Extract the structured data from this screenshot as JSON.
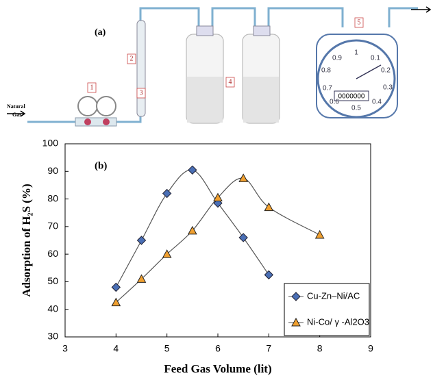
{
  "diagram": {
    "label": "(a)",
    "inlet": [
      "Natural",
      "Gas"
    ],
    "parts": [
      "1",
      "2",
      "3",
      "4",
      "5"
    ],
    "dial": [
      "0.9",
      "1",
      "0.1",
      "0.2",
      "0.8",
      "0.3",
      "0.7",
      "0.6",
      "0.4",
      "0.5"
    ],
    "counter": "0000000"
  },
  "chart_data": {
    "type": "line",
    "annotation": "(b)",
    "x_label": "Feed Gas Volume (lit)",
    "y_label": "Adsorption of H₂S (%)",
    "xlim": [
      3,
      9
    ],
    "xticks": [
      3,
      4,
      5,
      6,
      7,
      8,
      9
    ],
    "ylim": [
      30,
      100
    ],
    "yticks": [
      30,
      40,
      50,
      60,
      70,
      80,
      90,
      100
    ],
    "smooth": true,
    "legend": "lower-right",
    "series": [
      {
        "name": "Cu-Zn–Ni/AC",
        "color": "#4a6fb5",
        "marker": "diamond",
        "x": [
          4,
          4.5,
          5,
          5.5,
          6,
          6.5,
          7
        ],
        "values": [
          48,
          65,
          82,
          90.5,
          78.5,
          66,
          52.5
        ]
      },
      {
        "name": "Ni-Co/ γ -Al2O3",
        "color": "#f0a030",
        "marker": "triangle",
        "x": [
          4,
          4.5,
          5,
          5.5,
          6,
          6.5,
          7,
          8
        ],
        "values": [
          42.5,
          51,
          60,
          68.5,
          80.5,
          87.5,
          77,
          67
        ]
      }
    ]
  }
}
